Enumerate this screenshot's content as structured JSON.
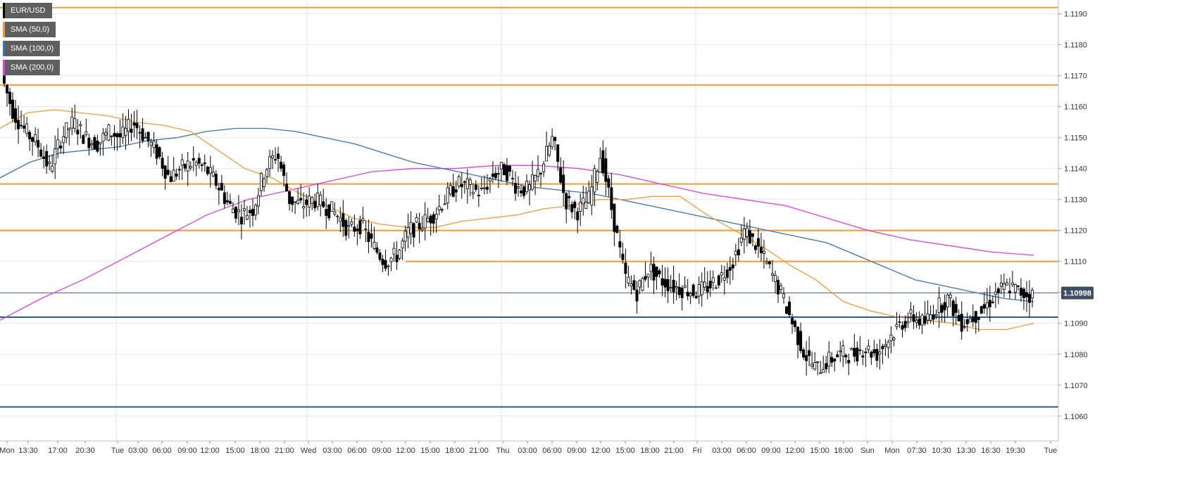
{
  "chart_data": {
    "type": "candlestick",
    "symbol": "EUR/USD",
    "legend": [
      {
        "label": "EUR/USD",
        "color": "#000000"
      },
      {
        "label": "SMA (50,0)",
        "color": "#f39c34"
      },
      {
        "label": "SMA (100,0)",
        "color": "#3b73b9"
      },
      {
        "label": "SMA (200,0)",
        "color": "#e040e0"
      }
    ],
    "ylim": [
      1.1052,
      1.1194
    ],
    "y_ticks": [
      "1.1060",
      "1.1070",
      "1.1080",
      "1.1090",
      "1.1100",
      "1.1110",
      "1.1120",
      "1.1130",
      "1.1140",
      "1.1150",
      "1.1160",
      "1.1170",
      "1.1180",
      "1.1190"
    ],
    "x_ticks": [
      "Mon",
      "13:30",
      "17:00",
      "20:30",
      "Tue",
      "03:00",
      "06:00",
      "09:00",
      "12:00",
      "15:00",
      "18:00",
      "21:00",
      "Wed",
      "03:00",
      "06:00",
      "09:00",
      "12:00",
      "15:00",
      "18:00",
      "21:00",
      "Thu",
      "03:00",
      "06:00",
      "09:00",
      "12:00",
      "15:00",
      "18:00",
      "21:00",
      "Fri",
      "03:00",
      "06:00",
      "09:00",
      "12:00",
      "15:00",
      "18:00",
      "Sun",
      "Mon",
      "07:30",
      "10:30",
      "13:30",
      "16:30",
      "19:30",
      "Tue"
    ],
    "current_price": "1.10998",
    "current_value": 1.10998,
    "horizontal_levels": [
      {
        "value": 1.1192,
        "color": "#f39c34"
      },
      {
        "value": 1.1167,
        "color": "#f39c34"
      },
      {
        "value": 1.1135,
        "color": "#f39c34"
      },
      {
        "value": 1.112,
        "color": "#f39c34"
      },
      {
        "value": 1.111,
        "color": "#f39c34",
        "partial": true
      },
      {
        "value": 1.1092,
        "color": "#2a5a9a"
      },
      {
        "value": 1.1063,
        "color": "#2a5a9a"
      }
    ],
    "close_anchors": [
      1.117,
      1.1158,
      1.1152,
      1.1148,
      1.114,
      1.115,
      1.1155,
      1.115,
      1.1148,
      1.1152,
      1.115,
      1.1155,
      1.115,
      1.1145,
      1.1137,
      1.114,
      1.1142,
      1.114,
      1.1135,
      1.1128,
      1.1125,
      1.1127,
      1.114,
      1.1145,
      1.113,
      1.1128,
      1.113,
      1.1128,
      1.1125,
      1.112,
      1.1122,
      1.1115,
      1.111,
      1.1112,
      1.112,
      1.1122,
      1.1125,
      1.113,
      1.1135,
      1.1134,
      1.1132,
      1.1138,
      1.114,
      1.1134,
      1.1133,
      1.114,
      1.115,
      1.113,
      1.1126,
      1.113,
      1.1145,
      1.1125,
      1.1105,
      1.11,
      1.1108,
      1.1104,
      1.1102,
      1.1101,
      1.11,
      1.1102,
      1.1105,
      1.111,
      1.112,
      1.1115,
      1.1108,
      1.11,
      1.109,
      1.108,
      1.1075,
      1.1078,
      1.108,
      1.108,
      1.1082,
      1.108,
      1.1085,
      1.109,
      1.1092,
      1.109,
      1.1095,
      1.1098,
      1.109,
      1.1092,
      1.1095,
      1.11,
      1.1102,
      1.11,
      1.1099
    ],
    "sma50_anchors": [
      1.1153,
      1.1158,
      1.1159,
      1.1158,
      1.1157,
      1.1155,
      1.1154,
      1.1152,
      1.1146,
      1.114,
      1.1137,
      1.1132,
      1.1128,
      1.1124,
      1.1122,
      1.1121,
      1.1121,
      1.1123,
      1.1124,
      1.1125,
      1.1127,
      1.1128,
      1.113,
      1.113,
      1.1131,
      1.1131,
      1.1125,
      1.112,
      1.1115,
      1.1109,
      1.1104,
      1.1097,
      1.1094,
      1.1092,
      1.1091,
      1.109,
      1.1088,
      1.1088,
      1.109
    ],
    "sma100_anchors": [
      1.1137,
      1.1142,
      1.1145,
      1.1146,
      1.1147,
      1.1149,
      1.115,
      1.1152,
      1.1153,
      1.1153,
      1.1152,
      1.115,
      1.1148,
      1.1145,
      1.1142,
      1.114,
      1.1138,
      1.1136,
      1.1134,
      1.1133,
      1.1132,
      1.113,
      1.1128,
      1.1126,
      1.1124,
      1.1122,
      1.112,
      1.1118,
      1.1116,
      1.1112,
      1.1108,
      1.1104,
      1.1102,
      1.11,
      1.1098,
      1.1097
    ],
    "sma200_anchors": [
      1.1091,
      1.1098,
      1.1104,
      1.1111,
      1.1118,
      1.1125,
      1.113,
      1.1133,
      1.1136,
      1.1139,
      1.114,
      1.114,
      1.1141,
      1.1141,
      1.114,
      1.1138,
      1.1135,
      1.1132,
      1.113,
      1.1128,
      1.1124,
      1.112,
      1.1117,
      1.1115,
      1.1113,
      1.1112
    ]
  }
}
